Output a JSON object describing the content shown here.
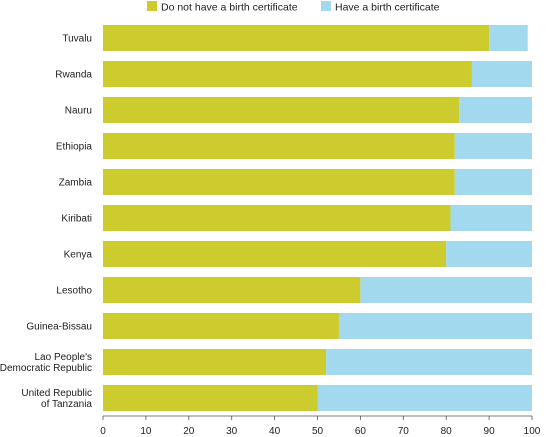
{
  "chart_data": {
    "type": "bar",
    "orientation": "horizontal",
    "stacked": true,
    "categories": [
      "Tuvalu",
      "Rwanda",
      "Nauru",
      "Ethiopia",
      "Zambia",
      "Kiribati",
      "Kenya",
      "Lesotho",
      "Guinea-Bissau",
      "Lao People's Democratic Republic",
      "United Republic of Tanzania"
    ],
    "series": [
      {
        "name": "Do not have a birth certificate",
        "color": "#cccc2e",
        "values": [
          90,
          86,
          83,
          82,
          82,
          81,
          80,
          60,
          55,
          52,
          50
        ]
      },
      {
        "name": "Have a birth certificate",
        "color": "#a3d9ee",
        "values": [
          9,
          14,
          17,
          18,
          18,
          19,
          20,
          40,
          45,
          48,
          50
        ]
      }
    ],
    "xlim": [
      0,
      100
    ],
    "xticks": [
      0,
      10,
      20,
      30,
      40,
      50,
      60,
      70,
      80,
      90,
      100
    ],
    "grid": false,
    "legend": "top"
  }
}
